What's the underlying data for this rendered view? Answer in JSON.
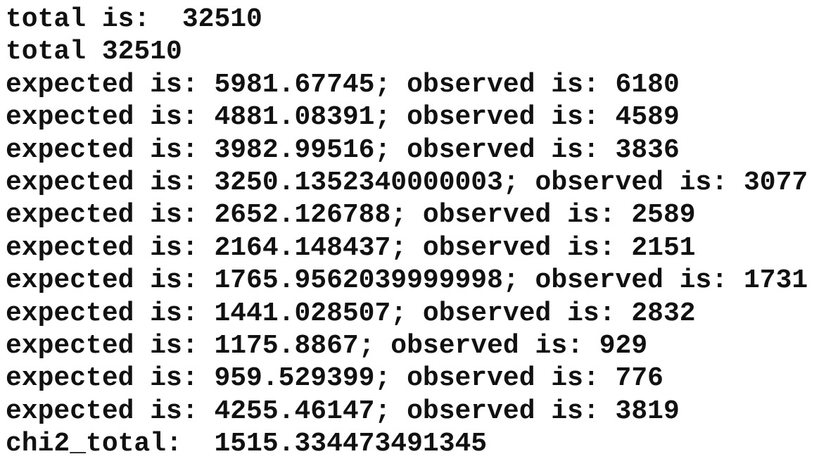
{
  "console": {
    "lines": [
      "total is:  32510",
      "total 32510",
      "expected is: 5981.67745; observed is: 6180",
      "expected is: 4881.08391; observed is: 4589",
      "expected is: 3982.99516; observed is: 3836",
      "expected is: 3250.1352340000003; observed is: 3077",
      "expected is: 2652.126788; observed is: 2589",
      "expected is: 2164.148437; observed is: 2151",
      "expected is: 1765.9562039999998; observed is: 1731",
      "expected is: 1441.028507; observed is: 2832",
      "expected is: 1175.8867; observed is: 929",
      "expected is: 959.529399; observed is: 776",
      "expected is: 4255.46147; observed is: 3819",
      "chi2_total:  1515.334473491345"
    ]
  }
}
